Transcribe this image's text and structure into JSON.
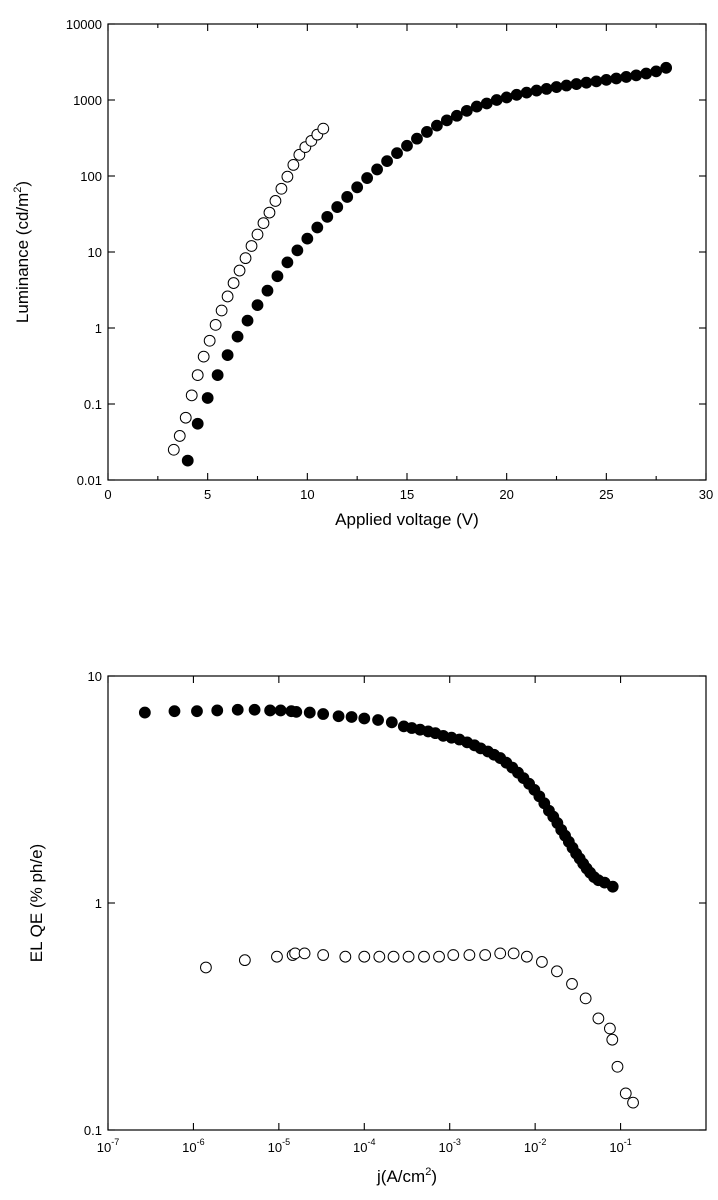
{
  "chart_data": [
    {
      "type": "scatter",
      "title": "",
      "xlabel": "Applied voltage (V)",
      "ylabel": "Luminance (cd/m²)",
      "ylabel_parts": {
        "text": "Luminance (cd/m",
        "sup": "2",
        "end": ")"
      },
      "xscale": "linear",
      "yscale": "log",
      "xlim": [
        0,
        30
      ],
      "ylim": [
        0.01,
        10000
      ],
      "x_ticks": [
        0,
        5,
        10,
        15,
        20,
        25,
        30
      ],
      "x_tick_labels": [
        "0",
        "5",
        "10",
        "15",
        "20",
        "25",
        "30"
      ],
      "y_ticks": [
        0.01,
        0.1,
        1,
        10,
        100,
        1000,
        10000
      ],
      "y_tick_labels": [
        "0.01",
        "0.1",
        "1",
        "10",
        "100",
        "1000",
        "10000"
      ],
      "grid": false,
      "series": [
        {
          "marker": "open-circle",
          "color": "#000000",
          "points": [
            [
              3.3,
              0.025
            ],
            [
              3.6,
              0.038
            ],
            [
              3.9,
              0.066
            ],
            [
              4.2,
              0.13
            ],
            [
              4.5,
              0.24
            ],
            [
              4.8,
              0.42
            ],
            [
              5.1,
              0.68
            ],
            [
              5.4,
              1.1
            ],
            [
              5.7,
              1.7
            ],
            [
              6.0,
              2.6
            ],
            [
              6.3,
              3.9
            ],
            [
              6.6,
              5.7
            ],
            [
              6.9,
              8.3
            ],
            [
              7.2,
              12
            ],
            [
              7.5,
              17
            ],
            [
              7.8,
              24
            ],
            [
              8.1,
              33
            ],
            [
              8.4,
              47
            ],
            [
              8.7,
              68
            ],
            [
              9.0,
              98
            ],
            [
              9.3,
              140
            ],
            [
              9.6,
              190
            ],
            [
              9.9,
              240
            ],
            [
              10.2,
              290
            ],
            [
              10.5,
              350
            ],
            [
              10.8,
              420
            ]
          ]
        },
        {
          "marker": "filled-circle",
          "color": "#000000",
          "points": [
            [
              4.0,
              0.018
            ],
            [
              4.5,
              0.055
            ],
            [
              5.0,
              0.12
            ],
            [
              5.5,
              0.24
            ],
            [
              6.0,
              0.44
            ],
            [
              6.5,
              0.77
            ],
            [
              7.0,
              1.25
            ],
            [
              7.5,
              2.0
            ],
            [
              8.0,
              3.1
            ],
            [
              8.5,
              4.8
            ],
            [
              9.0,
              7.3
            ],
            [
              9.5,
              10.5
            ],
            [
              10.0,
              15
            ],
            [
              10.5,
              21
            ],
            [
              11.0,
              29
            ],
            [
              11.5,
              39
            ],
            [
              12.0,
              53
            ],
            [
              12.5,
              71
            ],
            [
              13.0,
              94
            ],
            [
              13.5,
              122
            ],
            [
              14.0,
              157
            ],
            [
              14.5,
              200
            ],
            [
              15.0,
              250
            ],
            [
              15.5,
              310
            ],
            [
              16.0,
              380
            ],
            [
              16.5,
              460
            ],
            [
              17.0,
              540
            ],
            [
              17.5,
              620
            ],
            [
              18.0,
              720
            ],
            [
              18.5,
              820
            ],
            [
              19.0,
              900
            ],
            [
              19.5,
              1000
            ],
            [
              20.0,
              1080
            ],
            [
              20.5,
              1170
            ],
            [
              21.0,
              1250
            ],
            [
              21.5,
              1330
            ],
            [
              22.0,
              1400
            ],
            [
              22.5,
              1480
            ],
            [
              23.0,
              1550
            ],
            [
              23.5,
              1620
            ],
            [
              24.0,
              1690
            ],
            [
              24.5,
              1760
            ],
            [
              25.0,
              1840
            ],
            [
              25.5,
              1920
            ],
            [
              26.0,
              2010
            ],
            [
              26.5,
              2110
            ],
            [
              27.0,
              2230
            ],
            [
              27.5,
              2380
            ],
            [
              28.0,
              2650
            ]
          ]
        }
      ]
    },
    {
      "type": "scatter",
      "title": "",
      "xlabel": "j(A/cm²)",
      "xlabel_parts": {
        "text": "j(A/cm",
        "sup": "2",
        "end": ")"
      },
      "ylabel": "EL QE (% ph/e)",
      "xscale": "log",
      "yscale": "log",
      "xlim": [
        1e-07,
        1
      ],
      "ylim": [
        0.1,
        10
      ],
      "x_ticks": [
        1e-07,
        1e-06,
        1e-05,
        0.0001,
        0.001,
        0.01,
        0.1
      ],
      "x_tick_labels": [
        {
          "base": "10",
          "exp": "-7"
        },
        {
          "base": "10",
          "exp": "-6"
        },
        {
          "base": "10",
          "exp": "-5"
        },
        {
          "base": "10",
          "exp": "-4"
        },
        {
          "base": "10",
          "exp": "-3"
        },
        {
          "base": "10",
          "exp": "-2"
        },
        {
          "base": "10",
          "exp": "-1"
        }
      ],
      "y_ticks": [
        0.1,
        1,
        10
      ],
      "y_tick_labels": [
        "0.1",
        "1",
        "10"
      ],
      "grid": false,
      "series": [
        {
          "marker": "filled-circle",
          "color": "#000000",
          "points": [
            [
              2.7e-07,
              6.9
            ],
            [
              6e-07,
              7.0
            ],
            [
              1.1e-06,
              7.0
            ],
            [
              1.9e-06,
              7.05
            ],
            [
              3.3e-06,
              7.1
            ],
            [
              5.2e-06,
              7.1
            ],
            [
              7.9e-06,
              7.05
            ],
            [
              1.05e-05,
              7.05
            ],
            [
              1.4e-05,
              7.0
            ],
            [
              1.6e-05,
              6.95
            ],
            [
              2.3e-05,
              6.9
            ],
            [
              3.3e-05,
              6.8
            ],
            [
              5e-05,
              6.65
            ],
            [
              7.1e-05,
              6.6
            ],
            [
              0.0001,
              6.5
            ],
            [
              0.000145,
              6.4
            ],
            [
              0.00021,
              6.25
            ],
            [
              0.00029,
              6.0
            ],
            [
              0.00036,
              5.9
            ],
            [
              0.00045,
              5.8
            ],
            [
              0.00056,
              5.7
            ],
            [
              0.00068,
              5.6
            ],
            [
              0.00084,
              5.45
            ],
            [
              0.00105,
              5.35
            ],
            [
              0.0013,
              5.25
            ],
            [
              0.0016,
              5.1
            ],
            [
              0.00195,
              4.95
            ],
            [
              0.0023,
              4.8
            ],
            [
              0.0028,
              4.65
            ],
            [
              0.0033,
              4.5
            ],
            [
              0.0039,
              4.35
            ],
            [
              0.0046,
              4.15
            ],
            [
              0.0054,
              3.95
            ],
            [
              0.0063,
              3.75
            ],
            [
              0.0073,
              3.55
            ],
            [
              0.0085,
              3.35
            ],
            [
              0.0098,
              3.15
            ],
            [
              0.0112,
              2.95
            ],
            [
              0.0128,
              2.75
            ],
            [
              0.0145,
              2.55
            ],
            [
              0.0163,
              2.4
            ],
            [
              0.0182,
              2.25
            ],
            [
              0.0202,
              2.1
            ],
            [
              0.0224,
              1.98
            ],
            [
              0.0248,
              1.86
            ],
            [
              0.0274,
              1.75
            ],
            [
              0.0302,
              1.65
            ],
            [
              0.0332,
              1.57
            ],
            [
              0.0365,
              1.49
            ],
            [
              0.04,
              1.42
            ],
            [
              0.044,
              1.36
            ],
            [
              0.049,
              1.3
            ],
            [
              0.055,
              1.26
            ],
            [
              0.065,
              1.23
            ],
            [
              0.081,
              1.18
            ]
          ]
        },
        {
          "marker": "open-circle",
          "color": "#000000",
          "points": [
            [
              1.4e-06,
              0.52
            ],
            [
              4e-06,
              0.56
            ],
            [
              9.5e-06,
              0.58
            ],
            [
              1.45e-05,
              0.59
            ],
            [
              1.55e-05,
              0.6
            ],
            [
              2e-05,
              0.6
            ],
            [
              3.3e-05,
              0.59
            ],
            [
              6e-05,
              0.58
            ],
            [
              0.0001,
              0.58
            ],
            [
              0.00015,
              0.58
            ],
            [
              0.00022,
              0.58
            ],
            [
              0.00033,
              0.58
            ],
            [
              0.0005,
              0.58
            ],
            [
              0.00075,
              0.58
            ],
            [
              0.0011,
              0.59
            ],
            [
              0.0017,
              0.59
            ],
            [
              0.0026,
              0.59
            ],
            [
              0.0039,
              0.6
            ],
            [
              0.0056,
              0.6
            ],
            [
              0.008,
              0.58
            ],
            [
              0.012,
              0.55
            ],
            [
              0.018,
              0.5
            ],
            [
              0.027,
              0.44
            ],
            [
              0.039,
              0.38
            ],
            [
              0.055,
              0.31
            ],
            [
              0.075,
              0.28
            ],
            [
              0.08,
              0.25
            ],
            [
              0.092,
              0.19
            ],
            [
              0.115,
              0.145
            ],
            [
              0.14,
              0.132
            ]
          ]
        }
      ]
    }
  ]
}
